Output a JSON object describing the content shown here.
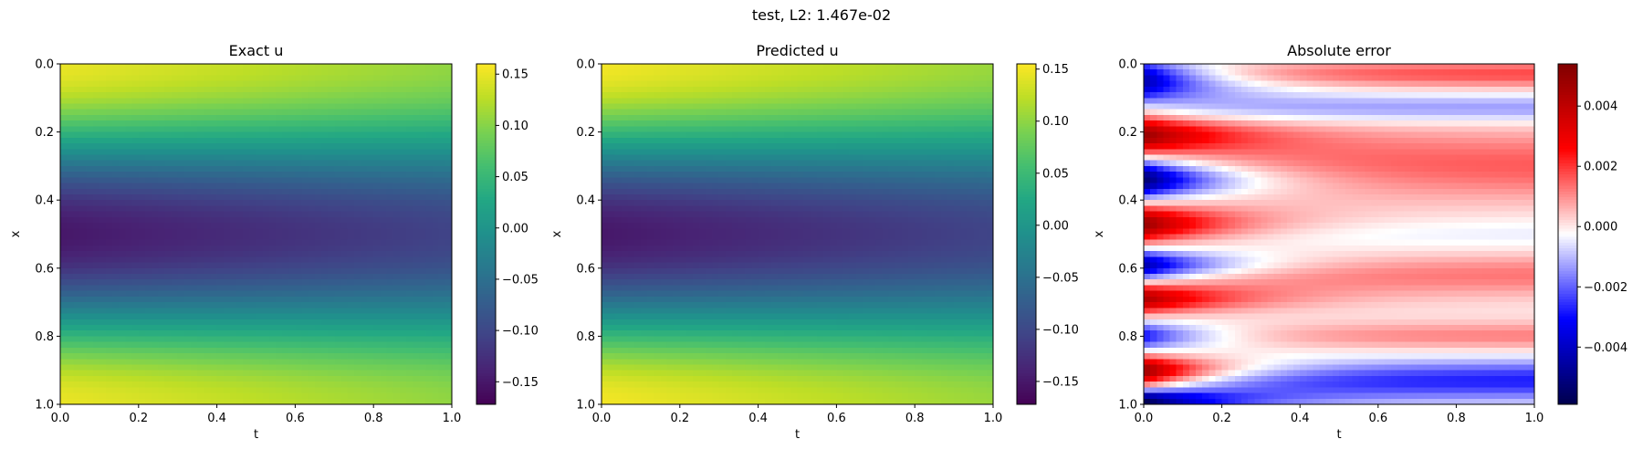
{
  "suptitle": "test, L2: 1.467e-02",
  "chart_data": [
    {
      "type": "heatmap",
      "title": "Exact u",
      "xlabel": "t",
      "ylabel": "x",
      "xlim": [
        0.0,
        1.0
      ],
      "ylim": [
        1.0,
        0.0
      ],
      "xticks": [
        "0.0",
        "0.2",
        "0.4",
        "0.6",
        "0.8",
        "1.0"
      ],
      "yticks": [
        "0.0",
        "0.2",
        "0.4",
        "0.6",
        "0.8",
        "1.0"
      ],
      "colormap": "viridis",
      "colorbar": {
        "range": [
          -0.172,
          0.16
        ],
        "ticks": [
          -0.15,
          -0.1,
          -0.05,
          0.0,
          0.05,
          0.1,
          0.15
        ],
        "ticklabels": [
          "−0.15",
          "−0.10",
          "−0.05",
          "0.00",
          "0.05",
          "0.10",
          "0.15"
        ]
      },
      "field": "u"
    },
    {
      "type": "heatmap",
      "title": "Predicted u",
      "xlabel": "t",
      "ylabel": "x",
      "xlim": [
        0.0,
        1.0
      ],
      "ylim": [
        1.0,
        0.0
      ],
      "xticks": [
        "0.0",
        "0.2",
        "0.4",
        "0.6",
        "0.8",
        "1.0"
      ],
      "yticks": [
        "0.0",
        "0.2",
        "0.4",
        "0.6",
        "0.8",
        "1.0"
      ],
      "colormap": "viridis",
      "colorbar": {
        "range": [
          -0.172,
          0.155
        ],
        "ticks": [
          -0.15,
          -0.1,
          -0.05,
          0.0,
          0.05,
          0.1,
          0.15
        ],
        "ticklabels": [
          "−0.15",
          "−0.10",
          "−0.05",
          "0.00",
          "0.05",
          "0.10",
          "0.15"
        ]
      },
      "field": "u"
    },
    {
      "type": "heatmap",
      "title": "Absolute error",
      "xlabel": "t",
      "ylabel": "x",
      "xlim": [
        0.0,
        1.0
      ],
      "ylim": [
        1.0,
        0.0
      ],
      "xticks": [
        "0.0",
        "0.2",
        "0.4",
        "0.6",
        "0.8",
        "1.0"
      ],
      "yticks": [
        "0.0",
        "0.2",
        "0.4",
        "0.6",
        "0.8",
        "1.0"
      ],
      "colormap": "seismic",
      "colorbar": {
        "range": [
          -0.0059,
          0.0054
        ],
        "ticks": [
          -0.004,
          -0.002,
          0.0,
          0.002,
          0.004
        ],
        "ticklabels": [
          "−0.004",
          "−0.002",
          "0.000",
          "0.002",
          "0.004"
        ]
      },
      "field": "error"
    }
  ]
}
